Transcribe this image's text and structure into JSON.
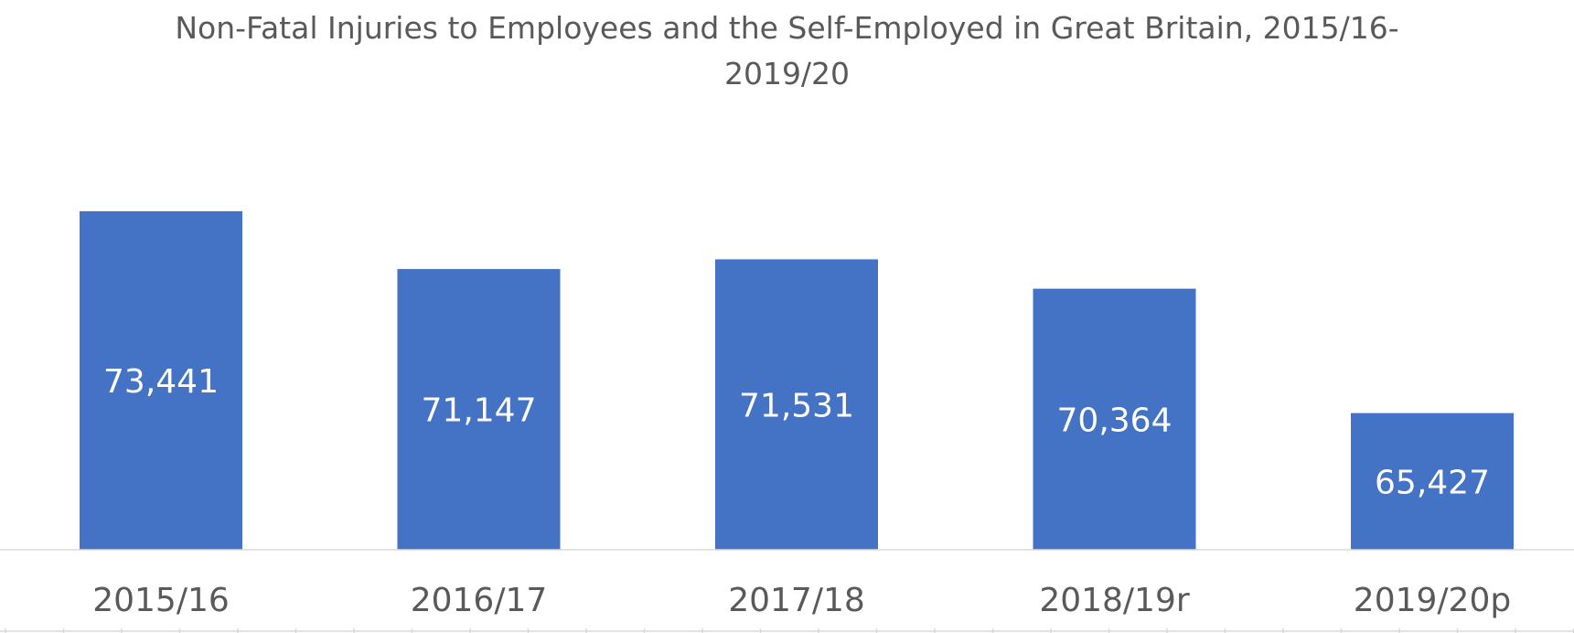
{
  "chart_data": {
    "type": "bar",
    "title_line1": "Non-Fatal Injuries to Employees and the Self-Employed in Great Britain, 2015/16-",
    "title_line2": "2019/20",
    "categories": [
      "2015/16",
      "2016/17",
      "2017/18",
      "2018/19r",
      "2019/20p"
    ],
    "values": [
      73441,
      71147,
      71531,
      70364,
      65427
    ],
    "data_labels": [
      "73,441",
      "71,147",
      "71,531",
      "70,364",
      "65,427"
    ],
    "ylim": [
      60000,
      74600
    ],
    "grid": false,
    "legend": "none",
    "bar_color": "#4472C4",
    "label_color": "#FFFFFF",
    "axis_color": "#D9D9D9",
    "text_color": "#595959"
  }
}
